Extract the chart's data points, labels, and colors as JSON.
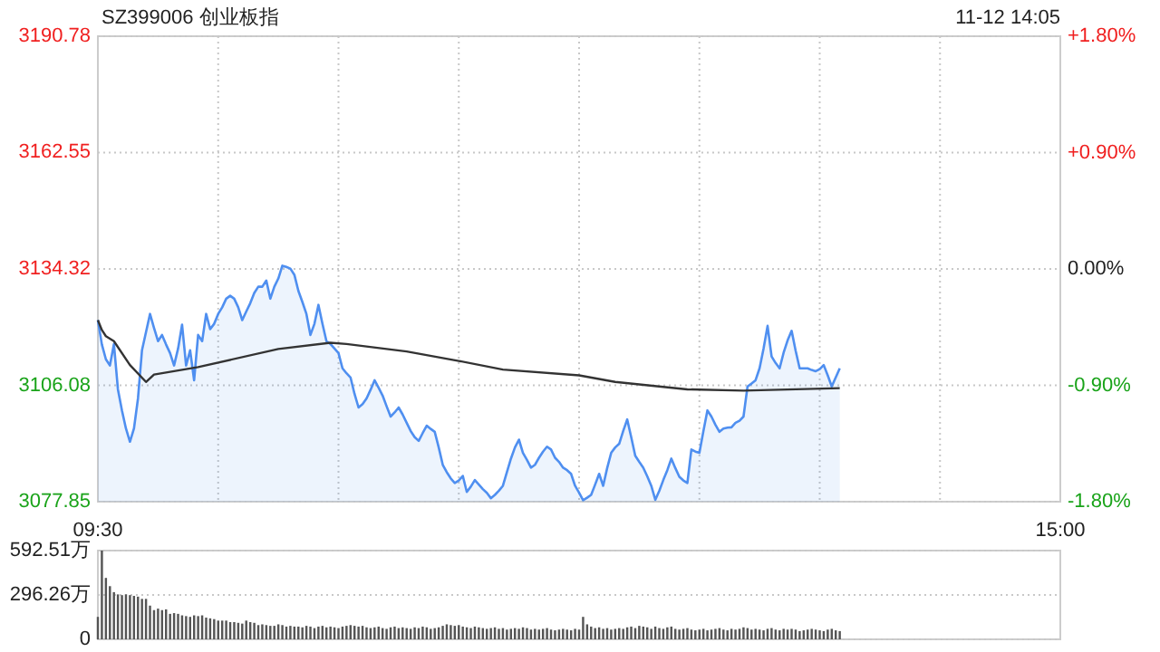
{
  "chart_data": [
    {
      "type": "line",
      "title": "SZ399006 创业板指",
      "annotations": [
        "11-12 14:05"
      ],
      "categories": [
        "09:30",
        null,
        null,
        null,
        null,
        null,
        null,
        null,
        null,
        null,
        null,
        null,
        null,
        null,
        null,
        null,
        null,
        null,
        null,
        null,
        null,
        null,
        null,
        null,
        null,
        null,
        null,
        null,
        null,
        null,
        null,
        null,
        null,
        null,
        null,
        null,
        null,
        null,
        null,
        null,
        null,
        null,
        null,
        null,
        null,
        null,
        null,
        null,
        null,
        null,
        null,
        null,
        null,
        null,
        null,
        null,
        null,
        null,
        null,
        null,
        null,
        null,
        null,
        null,
        null,
        null,
        null,
        null,
        null,
        null,
        null,
        null,
        null,
        null,
        null,
        null,
        null,
        null,
        null,
        null,
        null,
        null,
        null,
        null,
        null,
        null,
        null,
        null,
        null,
        null,
        null,
        null,
        null,
        null,
        null,
        null,
        null,
        null,
        null,
        null,
        null,
        null,
        null,
        null,
        null,
        null,
        null,
        null,
        null,
        null,
        null,
        null,
        null,
        null,
        null,
        null,
        null,
        null,
        null,
        null,
        null,
        null,
        null,
        null,
        null,
        null,
        null,
        null,
        null,
        null,
        null,
        null,
        null,
        null,
        null,
        null,
        null,
        null,
        null,
        null,
        null,
        null,
        null,
        null,
        null,
        null,
        null,
        null,
        null,
        null,
        null,
        null,
        null,
        null,
        null,
        null,
        null,
        null,
        null,
        null,
        null,
        null,
        null,
        null,
        null,
        null,
        null,
        null,
        null,
        null,
        null,
        null,
        null,
        null,
        null,
        null,
        null,
        null,
        null,
        null,
        null,
        null,
        null,
        null,
        null,
        null,
        null,
        null,
        null,
        null,
        null,
        null,
        null,
        null,
        null,
        null,
        null,
        null,
        null,
        null,
        null,
        null,
        null,
        null,
        null,
        null,
        null,
        null,
        null,
        null,
        null,
        null,
        null,
        null,
        null,
        null,
        null,
        null,
        null,
        null,
        null,
        null,
        null,
        null,
        null,
        null,
        null,
        null,
        null,
        null,
        null,
        null,
        null,
        null,
        null,
        null,
        null,
        null,
        null,
        null,
        "15:00"
      ],
      "ylim": [
        3077.85,
        3190.78
      ],
      "yticks": [
        3077.85,
        3106.08,
        3134.32,
        3162.55,
        3190.78
      ],
      "y2lim": [
        -1.8,
        1.8
      ],
      "y2ticks": [
        {
          "value": -1.8,
          "label": "-1.80%"
        },
        {
          "value": -0.9,
          "label": "-0.90%"
        },
        {
          "value": 0,
          "label": "0.00%"
        },
        {
          "value": 0.9,
          "label": "+0.90%"
        },
        {
          "value": 1.8,
          "label": "+1.80%"
        }
      ],
      "grid": true,
      "series": [
        {
          "type": "area",
          "color": "#4f8ff0",
          "values": [
            3121.9,
            3116,
            3112.4,
            3110.9,
            3116.1,
            3105.1,
            3100,
            3095.6,
            3092.4,
            3095.6,
            3102.9,
            3114.6,
            3119,
            3123.4,
            3120,
            3116.8,
            3118.3,
            3116,
            3113.9,
            3110.9,
            3115,
            3120.8,
            3110.9,
            3114.6,
            3107.3,
            3118.3,
            3116.8,
            3123.4,
            3119.7,
            3121,
            3123.4,
            3125,
            3127.1,
            3127.8,
            3127.1,
            3125,
            3121.9,
            3124,
            3126,
            3128.5,
            3130,
            3130,
            3131.5,
            3127.1,
            3130,
            3132,
            3135.1,
            3134.8,
            3134.4,
            3132.9,
            3129,
            3126.3,
            3123.4,
            3118.3,
            3121,
            3125.6,
            3121,
            3116.8,
            3116.1,
            3115,
            3113.9,
            3110.2,
            3109,
            3108,
            3104,
            3100.7,
            3101.5,
            3102.9,
            3105,
            3107.3,
            3105.5,
            3103.6,
            3101,
            3098.5,
            3099.5,
            3100.7,
            3099,
            3097,
            3095,
            3093.5,
            3092.6,
            3094.5,
            3096.3,
            3095.5,
            3094.8,
            3091,
            3086.8,
            3085,
            3083.5,
            3082.4,
            3083,
            3084.1,
            3080.2,
            3081.5,
            3083.1,
            3082,
            3080.9,
            3080,
            3078.7,
            3079.5,
            3080.5,
            3081.7,
            3085,
            3088.3,
            3091,
            3092.9,
            3089.7,
            3088,
            3086.1,
            3086.8,
            3088.5,
            3090,
            3091.2,
            3090.5,
            3088.5,
            3087.5,
            3086.1,
            3085.5,
            3084.6,
            3081.7,
            3080,
            3078.2,
            3078.8,
            3079.5,
            3082,
            3084.6,
            3081.7,
            3086,
            3089.7,
            3091,
            3091.9,
            3095,
            3097.8,
            3093.5,
            3089,
            3087.5,
            3086.1,
            3084,
            3081.7,
            3078.3,
            3080.5,
            3083.1,
            3085.5,
            3088.3,
            3086,
            3083.9,
            3083,
            3082.4,
            3090.5,
            3090,
            3089.7,
            3095,
            3100,
            3098.5,
            3096.5,
            3094.8,
            3095.6,
            3095.8,
            3095.9,
            3097,
            3097.5,
            3098.5,
            3105.8,
            3106.5,
            3107.3,
            3110.2,
            3115,
            3120.5,
            3113.1,
            3111.5,
            3110.2,
            3114,
            3117,
            3119.3,
            3114.5,
            3110.2,
            3110.2,
            3110.2,
            3109.8,
            3109.5,
            3110,
            3111,
            3108.5,
            3105.8,
            3108,
            3110.2,
            null,
            null,
            null,
            null,
            null,
            null,
            null,
            null,
            null,
            null,
            null,
            null,
            null,
            null,
            null,
            null,
            null,
            null,
            null,
            null,
            null,
            null,
            null,
            null,
            null,
            null,
            null,
            null,
            null,
            null,
            null,
            null,
            null,
            null,
            null,
            null,
            null,
            null,
            null,
            null,
            null,
            null,
            null,
            null,
            null,
            null,
            null,
            null,
            null,
            null,
            null,
            null,
            null,
            null,
            null
          ]
        },
        {
          "color": "#333333",
          "values": [
            3121.9,
            3119.5,
            3118,
            null,
            3116.8,
            null,
            null,
            null,
            3111,
            null,
            null,
            null,
            3106.9,
            null,
            3108.7,
            null,
            null,
            null,
            null,
            null,
            null,
            null,
            null,
            null,
            null,
            3110.5,
            null,
            null,
            null,
            null,
            null,
            null,
            null,
            null,
            null,
            null,
            null,
            null,
            null,
            null,
            null,
            null,
            null,
            null,
            null,
            3114.9,
            null,
            null,
            null,
            null,
            null,
            null,
            null,
            null,
            null,
            null,
            null,
            null,
            3116.4,
            null,
            null,
            null,
            3116.1,
            null,
            null,
            null,
            null,
            null,
            null,
            null,
            null,
            null,
            null,
            null,
            null,
            null,
            null,
            3114.3,
            null,
            null,
            null,
            null,
            null,
            null,
            null,
            null,
            null,
            null,
            null,
            null,
            3112,
            null,
            null,
            null,
            null,
            null,
            null,
            null,
            null,
            null,
            null,
            3109.9,
            null,
            null,
            null,
            null,
            null,
            null,
            null,
            null,
            null,
            null,
            null,
            null,
            null,
            null,
            null,
            null,
            null,
            null,
            3108.5,
            null,
            null,
            null,
            null,
            null,
            null,
            null,
            null,
            3106.9,
            null,
            null,
            null,
            null,
            null,
            null,
            null,
            null,
            null,
            null,
            null,
            null,
            null,
            null,
            null,
            null,
            null,
            3105.1,
            null,
            null,
            null,
            null,
            null,
            null,
            null,
            null,
            null,
            null,
            null,
            null,
            null,
            3104.8,
            null,
            null,
            null,
            null,
            null,
            null,
            null,
            null,
            null,
            null,
            null,
            null,
            null,
            null,
            null,
            null,
            null,
            null,
            null,
            null,
            null,
            null,
            null,
            3105.4,
            null,
            null,
            null,
            null,
            null,
            null,
            null,
            null,
            null,
            null,
            null,
            null,
            null,
            null,
            null,
            null,
            null,
            null,
            null,
            null,
            null,
            null,
            null,
            null,
            null,
            null,
            null,
            null,
            null,
            null,
            null,
            null,
            null,
            null,
            null,
            null,
            null,
            null,
            null,
            null,
            null,
            null,
            null,
            null,
            null,
            null,
            null,
            null,
            null,
            null,
            null,
            null,
            null,
            null,
            null
          ]
        }
      ]
    },
    {
      "type": "bar",
      "color": "#555555",
      "ylim": [
        0,
        592.51
      ],
      "yticks": [
        0,
        {
          "value": 296.26,
          "label": "296.26万"
        },
        {
          "value": 592.51,
          "label": "592.51万"
        }
      ],
      "grid": "y",
      "tick_labels": "y",
      "categories": [
        null,
        null,
        null,
        null,
        null,
        null,
        null,
        null,
        null,
        null,
        null,
        null,
        null,
        null,
        null,
        null,
        null,
        null,
        null,
        null,
        null,
        null,
        null,
        null,
        null,
        null,
        null,
        null,
        null,
        null,
        null,
        null,
        null,
        null,
        null,
        null,
        null,
        null,
        null,
        null,
        null,
        null,
        null,
        null,
        null,
        null,
        null,
        null,
        null,
        null,
        null,
        null,
        null,
        null,
        null,
        null,
        null,
        null,
        null,
        null,
        null,
        null,
        null,
        null,
        null,
        null,
        null,
        null,
        null,
        null,
        null,
        null,
        null,
        null,
        null,
        null,
        null,
        null,
        null,
        null,
        null,
        null,
        null,
        null,
        null,
        null,
        null,
        null,
        null,
        null,
        null,
        null,
        null,
        null,
        null,
        null,
        null,
        null,
        null,
        null,
        null,
        null,
        null,
        null,
        null,
        null,
        null,
        null,
        null,
        null,
        null,
        null,
        null,
        null,
        null,
        null,
        null,
        null,
        null,
        null,
        null,
        null,
        null,
        null,
        null,
        null,
        null,
        null,
        null,
        null,
        null,
        null,
        null,
        null,
        null,
        null,
        null,
        null,
        null,
        null,
        null,
        null,
        null,
        null,
        null,
        null,
        null,
        null,
        null,
        null,
        null,
        null,
        null,
        null,
        null,
        null,
        null,
        null,
        null,
        null,
        null,
        null,
        null,
        null,
        null,
        null,
        null,
        null,
        null,
        null,
        null,
        null,
        null,
        null,
        null,
        null,
        null,
        null,
        null,
        null,
        null,
        null,
        null,
        null,
        null,
        null,
        null,
        null,
        null,
        null,
        null,
        null,
        null,
        null,
        null,
        null,
        null,
        null,
        null,
        null,
        null,
        null,
        null,
        null,
        null,
        null,
        null,
        null,
        null,
        null,
        null,
        null,
        null,
        null,
        null,
        null,
        null,
        null,
        null,
        null,
        null,
        null,
        null,
        null,
        null,
        null,
        null,
        null,
        null,
        null,
        null,
        null,
        null,
        null,
        null,
        null,
        null,
        null,
        null,
        null,
        null
      ],
      "values": [
        150,
        592.51,
        410,
        355,
        315,
        300,
        295,
        300,
        295,
        290,
        285,
        270,
        270,
        225,
        195,
        205,
        195,
        200,
        170,
        175,
        170,
        160,
        155,
        150,
        160,
        155,
        160,
        145,
        140,
        135,
        125,
        125,
        125,
        115,
        115,
        110,
        105,
        125,
        115,
        110,
        95,
        100,
        95,
        90,
        90,
        100,
        95,
        85,
        90,
        85,
        85,
        80,
        90,
        85,
        75,
        85,
        90,
        80,
        85,
        80,
        75,
        85,
        90,
        95,
        90,
        85,
        90,
        80,
        75,
        80,
        85,
        75,
        70,
        80,
        85,
        75,
        80,
        75,
        70,
        80,
        75,
        85,
        80,
        70,
        75,
        80,
        90,
        100,
        95,
        90,
        95,
        85,
        80,
        75,
        85,
        80,
        75,
        70,
        75,
        80,
        70,
        75,
        65,
        70,
        75,
        70,
        80,
        75,
        65,
        70,
        65,
        70,
        75,
        65,
        60,
        65,
        70,
        65,
        60,
        70,
        65,
        150,
        100,
        85,
        75,
        80,
        70,
        75,
        65,
        70,
        75,
        70,
        80,
        85,
        75,
        90,
        85,
        80,
        70,
        85,
        75,
        70,
        80,
        85,
        70,
        65,
        70,
        75,
        65,
        60,
        65,
        70,
        60,
        65,
        70,
        75,
        65,
        60,
        70,
        65,
        70,
        80,
        75,
        65,
        70,
        65,
        60,
        70,
        75,
        65,
        60,
        70,
        65,
        70,
        65,
        55,
        60,
        65,
        70,
        65,
        60,
        55,
        65,
        70,
        60,
        55,
        null,
        null,
        null,
        null,
        null,
        null,
        null,
        null,
        null,
        null,
        null,
        null,
        null,
        null,
        null,
        null,
        null,
        null,
        null,
        null,
        null,
        null,
        null,
        null,
        null,
        null,
        null,
        null,
        null,
        null,
        null,
        null,
        null,
        null,
        null,
        null,
        null,
        null,
        null,
        null,
        null,
        null,
        null,
        null,
        null,
        null,
        null,
        null,
        null,
        null,
        null,
        null,
        null,
        null,
        null
      ]
    }
  ]
}
